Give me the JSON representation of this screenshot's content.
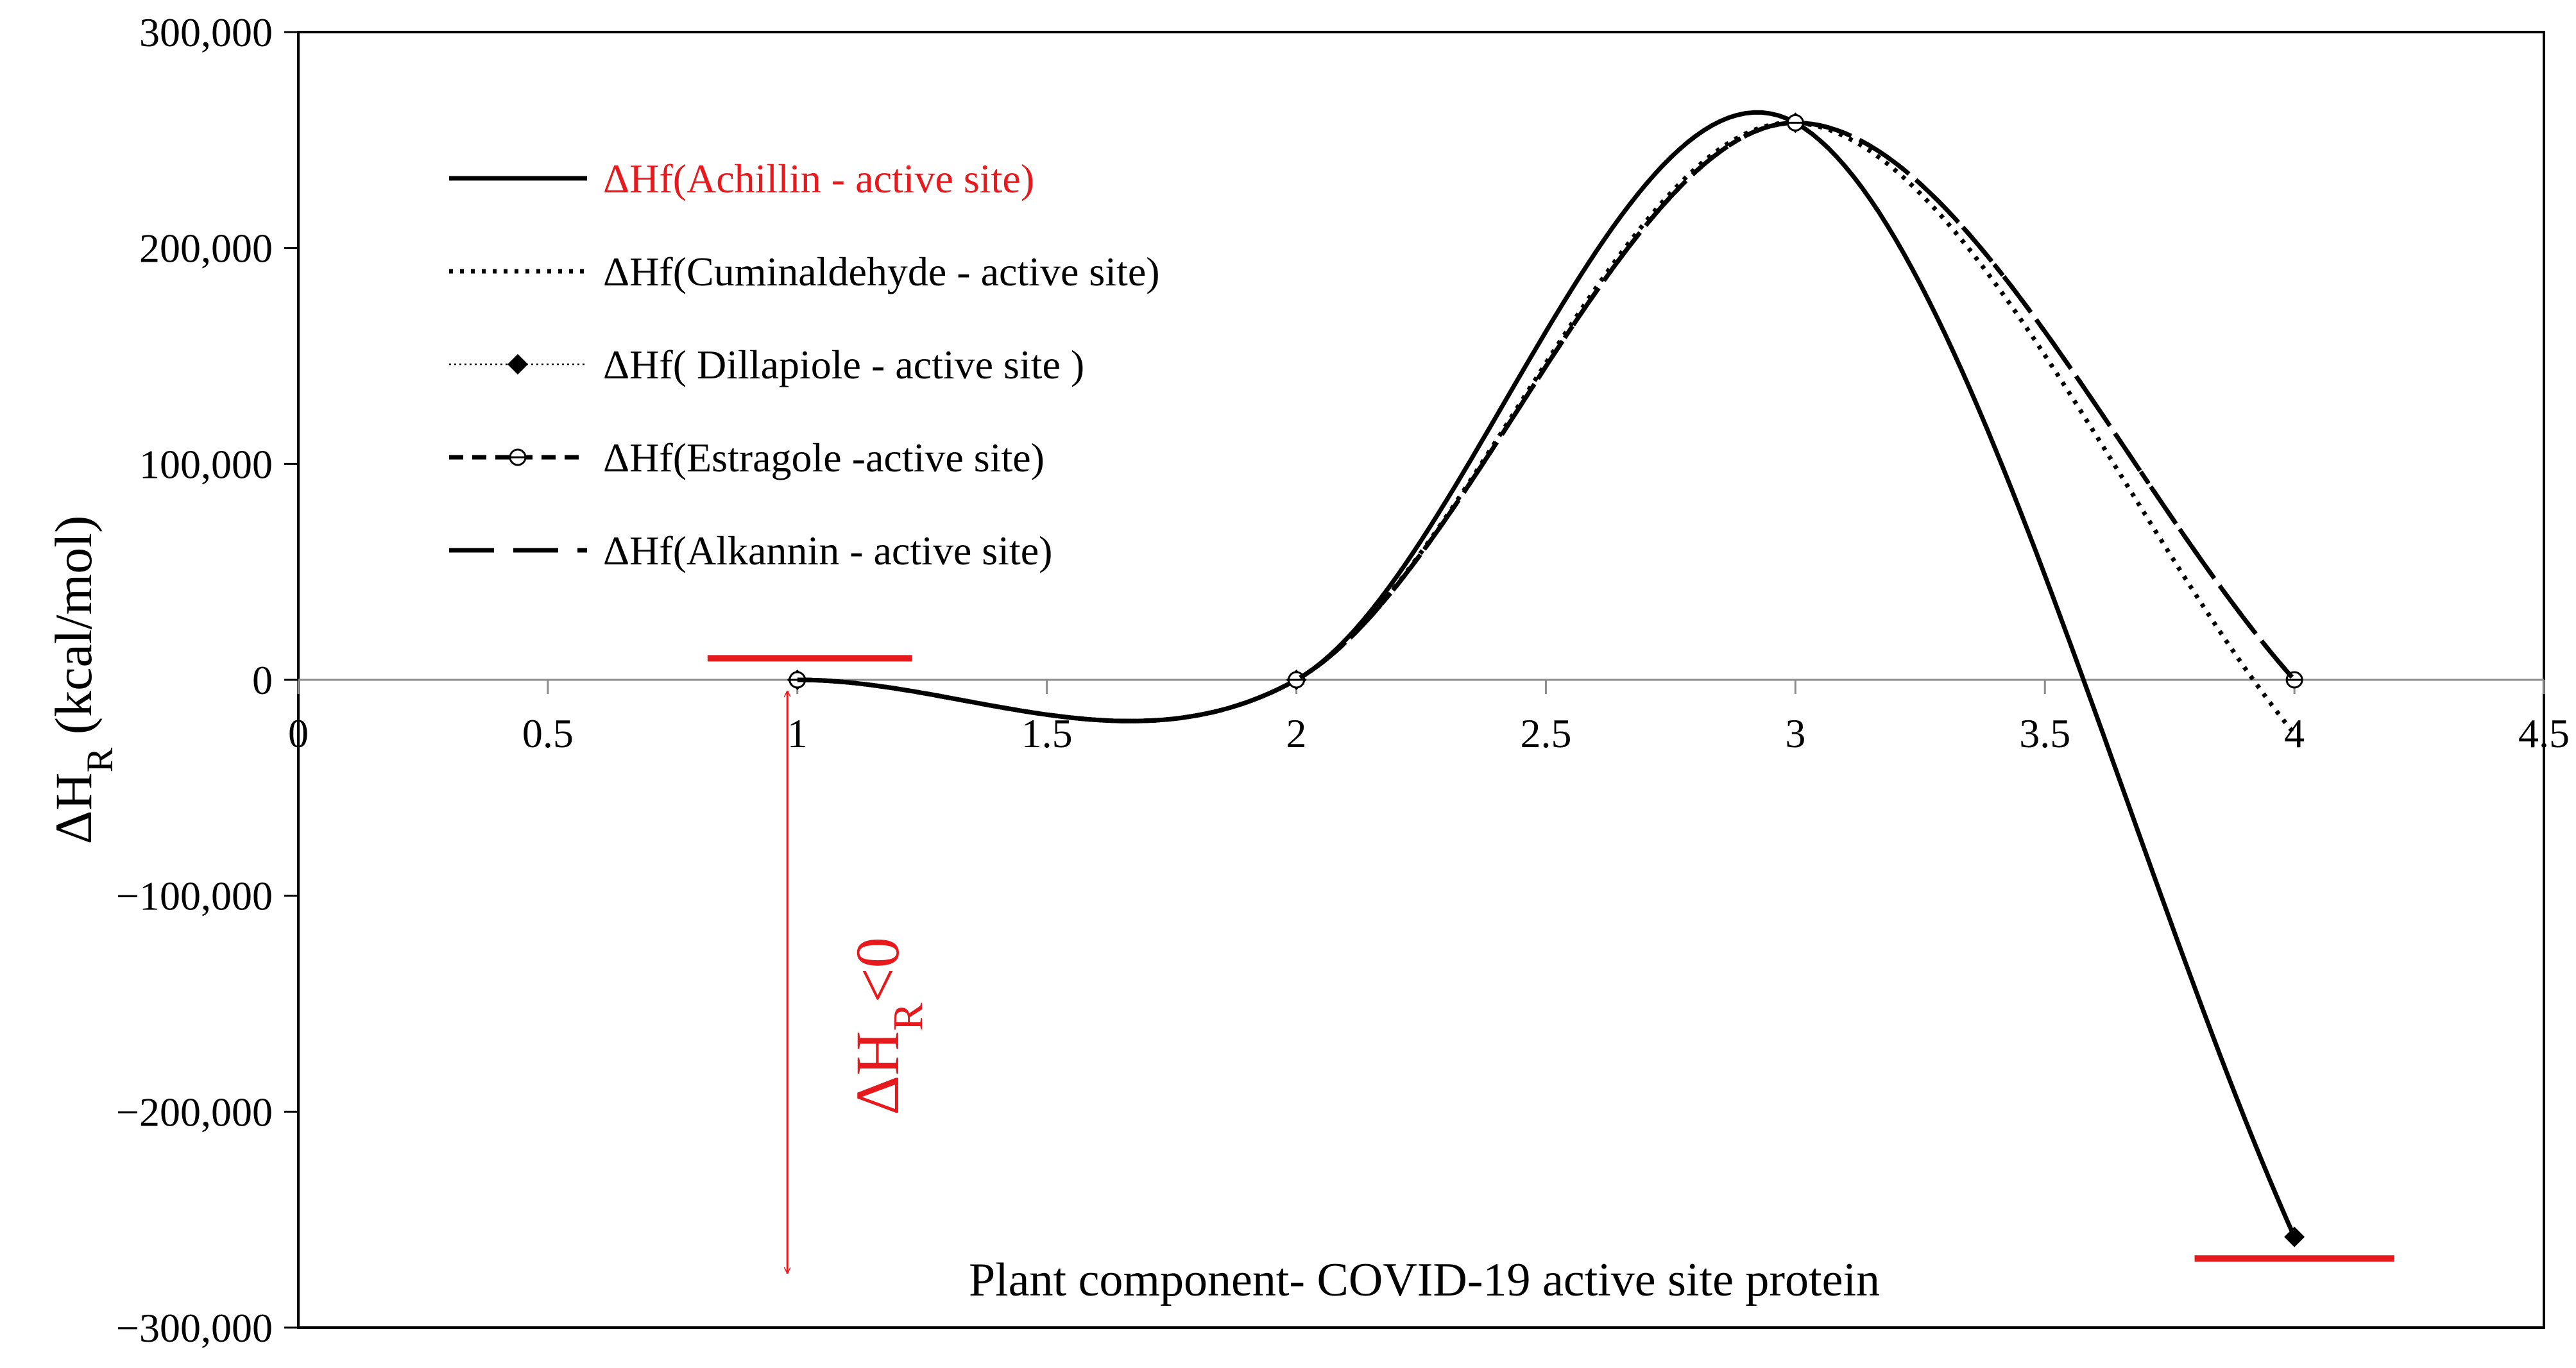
{
  "chart_data": {
    "type": "line",
    "title": "",
    "xlabel": "Plant component- COVID-19 active site protein",
    "ylabel": {
      "main": "ΔH",
      "sub": "R",
      "tail": " (kcal/mol)"
    },
    "xlim": [
      0,
      4.5
    ],
    "ylim": [
      -300000,
      300000
    ],
    "xticks": [
      0,
      0.5,
      1,
      1.5,
      2,
      2.5,
      3,
      3.5,
      4,
      4.5
    ],
    "xtick_labels": [
      "0",
      "0.5",
      "1",
      "1.5",
      "2",
      "2.5",
      "3",
      "3.5",
      "4",
      "4.5"
    ],
    "yticks": [
      300000,
      200000,
      100000,
      0,
      -100000,
      -200000,
      -300000
    ],
    "ytick_labels": [
      "300,000",
      "200,000",
      "100,000",
      "0",
      "−100,000",
      "−200,000",
      "−300,000"
    ],
    "series": [
      {
        "name": "ΔHf(Achillin - active site)",
        "style": "solid",
        "label_color": "#e8191d",
        "marker": "none",
        "x": [
          1,
          2,
          3,
          4
        ],
        "y": [
          0,
          0,
          258000,
          -258000
        ]
      },
      {
        "name": "ΔHf(Cuminaldehyde - active site)",
        "style": "dotted",
        "label_color": "#000000",
        "marker": "none",
        "x": [
          1,
          2,
          3,
          4
        ],
        "y": [
          0,
          0,
          258000,
          -25000
        ]
      },
      {
        "name": "ΔHf( Dillapiole  - active site )",
        "style": "thin-dotted",
        "label_color": "#000000",
        "marker": "diamond",
        "x": [
          1,
          2,
          3,
          4
        ],
        "y": [
          0,
          0,
          258000,
          -258000
        ]
      },
      {
        "name": "ΔHf(Estragole -active site)",
        "style": "dashed",
        "label_color": "#000000",
        "marker": "circle",
        "x": [
          1,
          2,
          3,
          4
        ],
        "y": [
          0,
          0,
          258000,
          0
        ]
      },
      {
        "name": "ΔHf(Alkannin - active site)",
        "style": "long-dash",
        "label_color": "#000000",
        "marker": "none",
        "x": [
          1,
          2,
          3,
          4
        ],
        "y": [
          0,
          0,
          258000,
          0
        ]
      }
    ],
    "annotations": {
      "delta_label": {
        "main": "ΔH",
        "sub": "R",
        "tail": "<0",
        "color": "#e8191d"
      },
      "reactant_level": {
        "x": [
          0.82,
          1.23
        ],
        "y": 10000,
        "color": "#e8191d"
      },
      "product_level": {
        "x": [
          3.8,
          4.2
        ],
        "y": -268000,
        "color": "#e8191d"
      },
      "arrow": {
        "x": 0.98,
        "y_top": -5000,
        "y_bottom": -275000,
        "color": "#e8191d"
      }
    }
  }
}
